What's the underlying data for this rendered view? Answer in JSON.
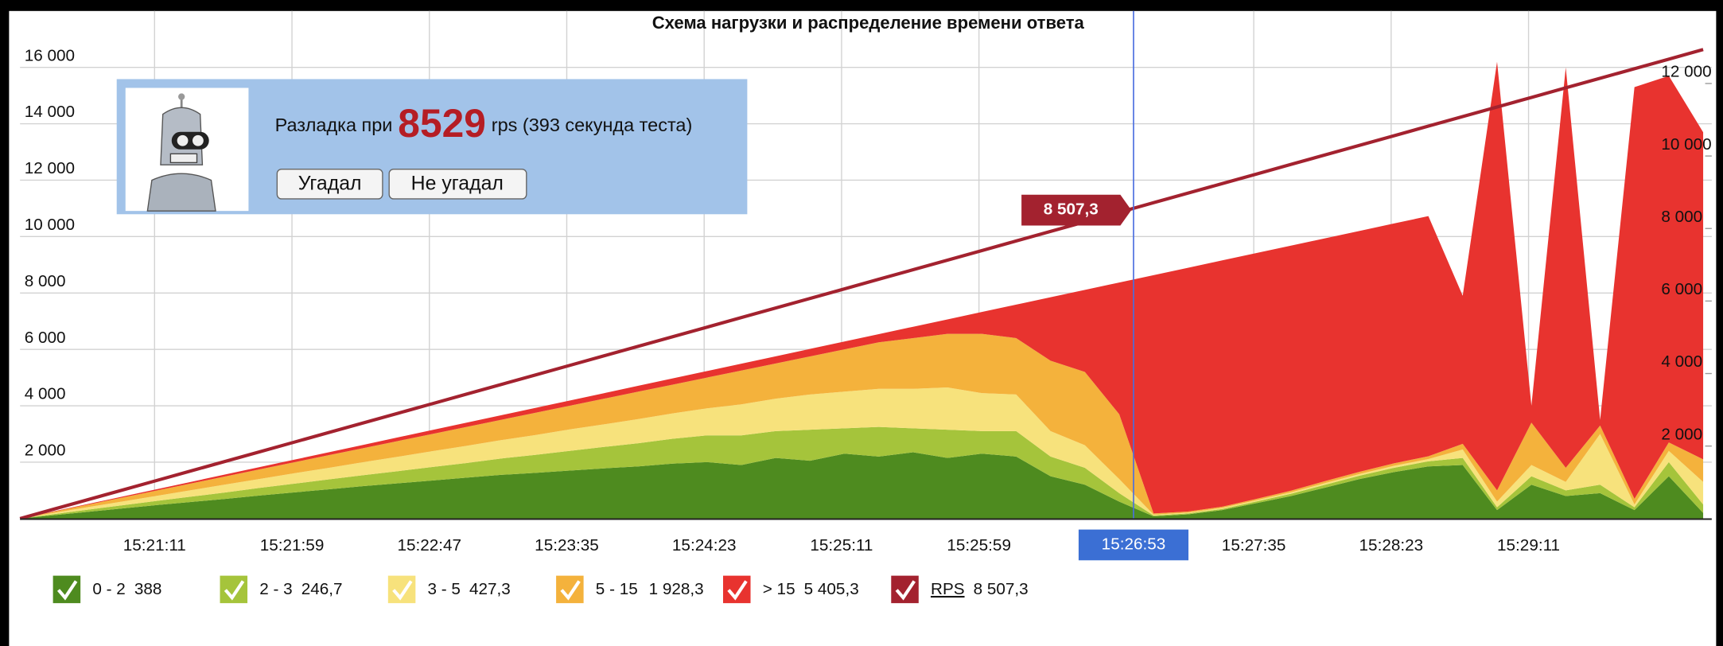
{
  "chart_data": {
    "type": "area",
    "stacked": true,
    "title": "Схема нагрузки и распределение времени ответа",
    "x": [
      "15:20:24",
      "15:20:36",
      "15:20:48",
      "15:21:00",
      "15:21:12",
      "15:21:24",
      "15:21:36",
      "15:21:48",
      "15:22:00",
      "15:22:12",
      "15:22:24",
      "15:22:36",
      "15:22:48",
      "15:23:00",
      "15:23:12",
      "15:23:24",
      "15:23:36",
      "15:23:48",
      "15:24:00",
      "15:24:12",
      "15:24:24",
      "15:24:36",
      "15:24:48",
      "15:25:00",
      "15:25:12",
      "15:25:24",
      "15:25:36",
      "15:25:48",
      "15:26:00",
      "15:26:12",
      "15:26:24",
      "15:26:36",
      "15:26:48",
      "15:27:00",
      "15:27:12",
      "15:27:24",
      "15:27:36",
      "15:27:48",
      "15:28:00",
      "15:28:12",
      "15:28:24",
      "15:28:36",
      "15:28:48",
      "15:29:00",
      "15:29:12",
      "15:29:24",
      "15:29:36",
      "15:29:48",
      "15:30:00",
      "15:30:12"
    ],
    "xlim": [
      "15:20:24",
      "15:30:15"
    ],
    "xticks": [
      "15:21:11",
      "15:21:59",
      "15:22:47",
      "15:23:35",
      "15:24:23",
      "15:25:11",
      "15:25:59",
      "15:27:35",
      "15:28:23",
      "15:29:11"
    ],
    "ylim": [
      0,
      18000
    ],
    "yticks": [
      {
        "value": 2000,
        "label": "2 000"
      },
      {
        "value": 4000,
        "label": "4 000"
      },
      {
        "value": 6000,
        "label": "6 000"
      },
      {
        "value": 8000,
        "label": "8 000"
      },
      {
        "value": 10000,
        "label": "10 000"
      },
      {
        "value": 12000,
        "label": "12 000"
      },
      {
        "value": 14000,
        "label": "14 000"
      },
      {
        "value": 16000,
        "label": "16 000"
      }
    ],
    "y2lim": [
      0,
      14000
    ],
    "y2ticks": [
      {
        "value": 2000,
        "label": "2 000"
      },
      {
        "value": 4000,
        "label": "4 000"
      },
      {
        "value": 6000,
        "label": "6 000"
      },
      {
        "value": 8000,
        "label": "8 000"
      },
      {
        "value": 10000,
        "label": "10 000"
      },
      {
        "value": 12000,
        "label": "12 000"
      }
    ],
    "grid": true,
    "cursor": {
      "x": "15:26:53"
    },
    "series": [
      {
        "name": "0 - 2",
        "color": "#4e8b1f",
        "cursor_value": 388,
        "cursor_label": "388",
        "values": [
          0,
          120,
          240,
          360,
          480,
          590,
          700,
          820,
          930,
          1040,
          1150,
          1250,
          1350,
          1450,
          1550,
          1620,
          1700,
          1780,
          1850,
          1950,
          2000,
          1900,
          2150,
          2050,
          2300,
          2200,
          2350,
          2150,
          2300,
          2200,
          1500,
          1200,
          600,
          80,
          150,
          300,
          550,
          800,
          1100,
          1400,
          1650,
          1850,
          1900,
          300,
          1200,
          800,
          900,
          300,
          1500,
          200
        ]
      },
      {
        "name": "2 - 3",
        "color": "#a5c43b",
        "cursor_value": 246.7,
        "cursor_label": "246,7",
        "values": [
          0,
          40,
          80,
          115,
          150,
          190,
          230,
          270,
          310,
          350,
          390,
          430,
          480,
          520,
          580,
          640,
          700,
          760,
          820,
          880,
          950,
          1050,
          950,
          1100,
          900,
          1050,
          850,
          1000,
          800,
          900,
          700,
          600,
          300,
          30,
          30,
          40,
          60,
          80,
          100,
          120,
          150,
          180,
          250,
          100,
          300,
          200,
          300,
          100,
          500,
          300
        ]
      },
      {
        "name": "3 - 5",
        "color": "#f7e27c",
        "cursor_value": 427.3,
        "cursor_label": "427,3",
        "values": [
          0,
          45,
          90,
          135,
          180,
          230,
          280,
          320,
          370,
          410,
          460,
          510,
          560,
          610,
          650,
          700,
          760,
          800,
          860,
          900,
          960,
          1100,
          1150,
          1250,
          1300,
          1350,
          1400,
          1500,
          1350,
          1300,
          900,
          800,
          500,
          30,
          30,
          40,
          40,
          50,
          60,
          60,
          70,
          80,
          300,
          200,
          400,
          300,
          1800,
          100,
          400,
          800
        ]
      },
      {
        "name": "5 - 15",
        "color": "#f4b23c",
        "cursor_value": 1928.3,
        "cursor_label": "1 928,3",
        "values": [
          0,
          45,
          90,
          140,
          190,
          240,
          290,
          340,
          390,
          450,
          500,
          560,
          610,
          670,
          720,
          790,
          840,
          910,
          970,
          1020,
          1090,
          1200,
          1250,
          1350,
          1500,
          1650,
          1800,
          1900,
          2100,
          2000,
          2500,
          2600,
          2300,
          40,
          40,
          40,
          50,
          60,
          70,
          80,
          90,
          100,
          200,
          400,
          1500,
          500,
          300,
          200,
          300,
          800
        ]
      },
      {
        "name": "> 15",
        "color": "#e8332f",
        "cursor_value": 5405.3,
        "cursor_label": "5 405,3",
        "values": [
          0,
          12,
          23,
          35,
          46,
          58,
          70,
          81,
          93,
          104,
          116,
          128,
          139,
          151,
          162,
          174,
          186,
          197,
          209,
          220,
          232,
          244,
          255,
          267,
          278,
          290,
          402,
          513,
          775,
          1186,
          2248,
          2910,
          4671,
          8453,
          8644,
          8736,
          8718,
          8689,
          8611,
          8542,
          8504,
          8516,
          5250,
          15200,
          600,
          14200,
          200,
          14600,
          13000,
          11600
        ]
      },
      {
        "name": "RPS",
        "color": "#a3222f",
        "axis": "y2",
        "type": "line",
        "cursor_value": 8507.3,
        "cursor_label": "8 507,3",
        "values": [
          0,
          264,
          528,
          792,
          1056,
          1320,
          1584,
          1848,
          2112,
          2376,
          2640,
          2904,
          3168,
          3432,
          3696,
          3960,
          4224,
          4488,
          4752,
          5016,
          5280,
          5544,
          5808,
          6072,
          6336,
          6600,
          6864,
          7128,
          7392,
          7656,
          7920,
          8184,
          8448,
          8712,
          8976,
          9240,
          9504,
          9768,
          10032,
          10296,
          10560,
          10824,
          11088,
          11352,
          11616,
          11880,
          12144,
          12408,
          12672,
          12936
        ]
      }
    ]
  },
  "overlay": {
    "text_before": "Разладка при",
    "value": 8529,
    "text_after": "rps (393 секунда теста)",
    "buttons": [
      "Угадал",
      "Не угадал"
    ]
  }
}
